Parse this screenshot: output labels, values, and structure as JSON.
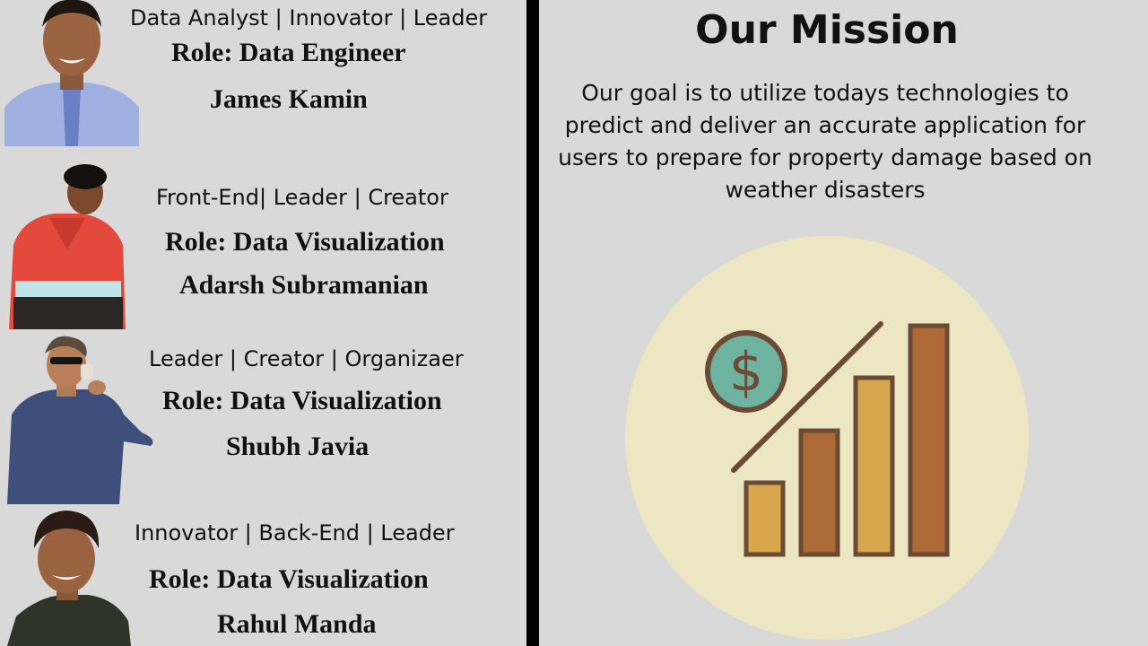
{
  "team": [
    {
      "tags": "Data Analyst | Innovator | Leader",
      "role": "Role: Data Engineer",
      "name": "James Kamin"
    },
    {
      "tags": "Front-End| Leader | Creator",
      "role": "Role: Data Visualization",
      "name": "Adarsh Subramanian"
    },
    {
      "tags": "Leader | Creator | Organizaer",
      "role": "Role: Data Visualization",
      "name": "Shubh Javia"
    },
    {
      "tags": "Innovator | Back-End | Leader",
      "role": "Role: Data Visualization",
      "name": "Rahul Manda"
    }
  ],
  "mission": {
    "title": "Our Mission",
    "text": "Our goal is to utilize todays technologies to predict and deliver an accurate application for users to prepare for property damage based on weather disasters"
  },
  "colors": {
    "background": "#d9d9d9",
    "divider": "#000000",
    "circle": "#ede6c3",
    "bar_light": "#d6a64c",
    "bar_dark": "#ad6a37",
    "outline": "#6b4a36",
    "coin": "#6db39f"
  }
}
